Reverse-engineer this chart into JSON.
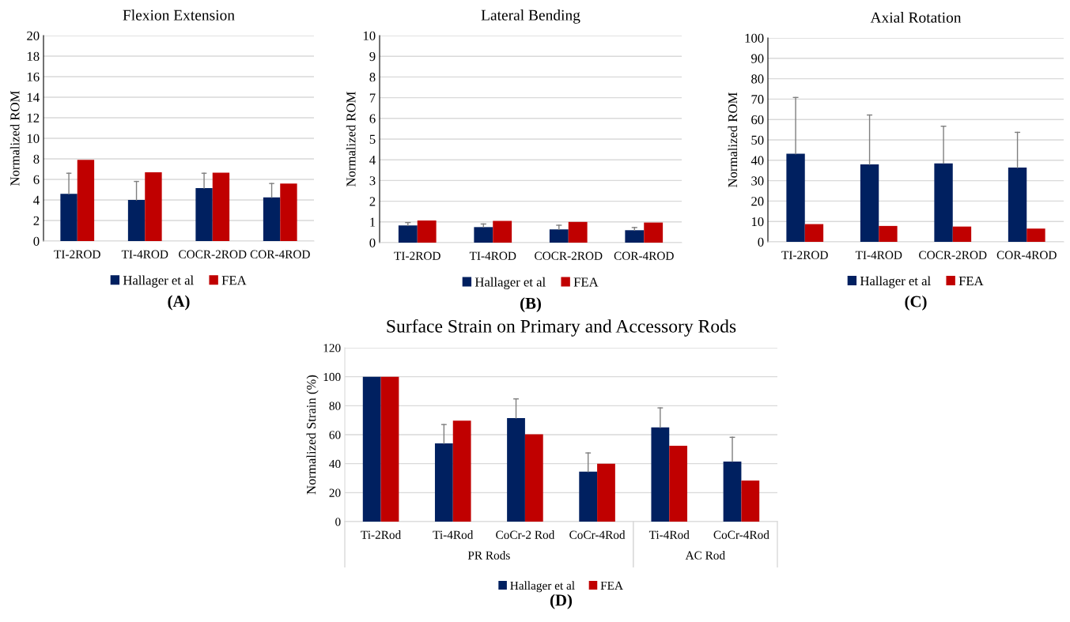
{
  "chart_data": [
    {
      "type": "bar",
      "title": "Flexion Extension",
      "ylabel": "Normalized ROM",
      "categories": [
        "TI-2ROD",
        "TI-4ROD",
        "COCR-2ROD",
        "COR-4ROD"
      ],
      "series": [
        {
          "name": "Hallager et al",
          "color": "#002060",
          "values": [
            4.6,
            4.0,
            5.15,
            4.25
          ],
          "errors": [
            [
              4.6,
              6.6
            ],
            [
              4.0,
              5.8
            ],
            [
              5.15,
              6.6
            ],
            [
              4.25,
              5.6
            ]
          ]
        },
        {
          "name": "FEA",
          "color": "#c00000",
          "values": [
            7.9,
            6.7,
            6.65,
            5.6
          ]
        }
      ],
      "ylim": [
        0,
        20
      ],
      "yticks": [
        0,
        2,
        4,
        6,
        8,
        10,
        12,
        14,
        16,
        18,
        20
      ],
      "grid": "y",
      "legend": "bottom",
      "annotations": [
        "(A)"
      ]
    },
    {
      "type": "bar",
      "title": "Lateral Bending",
      "ylabel": "Normalized ROM",
      "categories": [
        "TI-2ROD",
        "TI-4ROD",
        "COCR-2ROD",
        "COR-4ROD"
      ],
      "series": [
        {
          "name": "Hallager et al",
          "color": "#002060",
          "values": [
            0.83,
            0.75,
            0.64,
            0.6
          ],
          "errors": [
            [
              0.83,
              0.97
            ],
            [
              0.75,
              0.9
            ],
            [
              0.64,
              0.84
            ],
            [
              0.6,
              0.73
            ]
          ]
        },
        {
          "name": "FEA",
          "color": "#c00000",
          "values": [
            1.07,
            1.05,
            1.0,
            0.97
          ]
        }
      ],
      "ylim": [
        0,
        10
      ],
      "yticks": [
        0,
        1,
        2,
        3,
        4,
        5,
        6,
        7,
        8,
        9,
        10
      ],
      "grid": "y",
      "legend": "bottom",
      "annotations": [
        "(B)"
      ]
    },
    {
      "type": "bar",
      "title": "Axial Rotation",
      "ylabel": "Normalized ROM",
      "categories": [
        "TI-2ROD",
        "TI-4ROD",
        "COCR-2ROD",
        "COR-4ROD"
      ],
      "series": [
        {
          "name": "Hallager et al",
          "color": "#002060",
          "values": [
            43.2,
            38.0,
            38.5,
            36.4
          ],
          "errors": [
            [
              43.2,
              70.8
            ],
            [
              38.0,
              62.2
            ],
            [
              38.5,
              56.7
            ],
            [
              36.4,
              53.7
            ]
          ]
        },
        {
          "name": "FEA",
          "color": "#c00000",
          "values": [
            8.7,
            7.8,
            7.5,
            6.5
          ]
        }
      ],
      "ylim": [
        0,
        100
      ],
      "yticks": [
        0,
        10,
        20,
        30,
        40,
        50,
        60,
        70,
        80,
        90,
        100
      ],
      "grid": "y",
      "legend": "bottom",
      "annotations": [
        "(C)"
      ]
    },
    {
      "type": "bar",
      "title": "Surface Strain on Primary and Accessory Rods",
      "ylabel": "Normalized Strain (%)",
      "categories": [
        "Ti-2Rod",
        "Ti-4Rod",
        "CoCr-2 Rod",
        "CoCr-4Rod",
        "Ti-4Rod",
        "CoCr-4Rod"
      ],
      "series": [
        {
          "name": "Hallager et al",
          "color": "#002060",
          "values": [
            100,
            54,
            71.5,
            34.5,
            65,
            41.5
          ],
          "errors": [
            null,
            [
              54,
              67
            ],
            [
              71.5,
              84.7
            ],
            [
              34.5,
              47.4
            ],
            [
              65,
              78.5
            ],
            [
              41.5,
              58.2
            ]
          ]
        },
        {
          "name": "FEA",
          "color": "#c00000",
          "values": [
            100,
            69.7,
            60.3,
            40,
            52.4,
            28.4
          ]
        }
      ],
      "ylim": [
        0,
        120
      ],
      "yticks": [
        0,
        20,
        40,
        60,
        80,
        100,
        120
      ],
      "grid": "y",
      "legend": "bottom",
      "annotations": [
        "PR Rods",
        "AC Rod",
        "(D)"
      ]
    }
  ]
}
